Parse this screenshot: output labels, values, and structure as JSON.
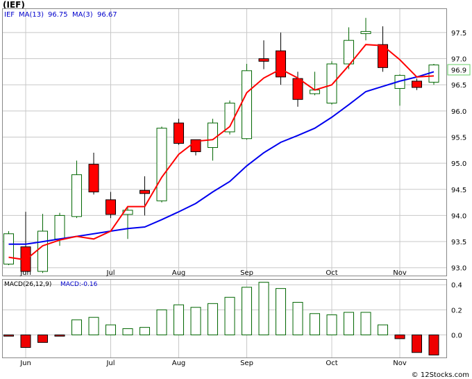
{
  "header": {
    "title": "(IEF)",
    "credit": "© 12Stocks.com"
  },
  "colors": {
    "up_outline": "#006600",
    "down_fill": "#ff0000",
    "ma_long": "#0000ee",
    "ma_short": "#ff0000",
    "macd_up": "#006600",
    "macd_down": "#ee0000",
    "grid": "#c8c8c8",
    "price_box": "#66cc66"
  },
  "legend": {
    "symbol": "IEF",
    "ma13_label": "MA(13)",
    "ma13_value": "96.75",
    "ma3_label": "MA(3)",
    "ma3_value": "96.67"
  },
  "price_tag": "96.9",
  "macd_legend": {
    "label": "MACD(26,12,9)",
    "value_label": "MACD:-0.16"
  },
  "chart_data": [
    {
      "type": "candlestick",
      "title": "",
      "x_tick_labels": [
        "Jun",
        "Jul",
        "Aug",
        "Sep",
        "Oct",
        "Nov"
      ],
      "x_tick_index": [
        1,
        6,
        10,
        14,
        19,
        23
      ],
      "y_ticks": [
        93.0,
        93.5,
        94.0,
        94.5,
        95.0,
        95.5,
        96.0,
        96.5,
        97.0,
        97.5
      ],
      "y_tick_labels": [
        "93.0",
        "93.5",
        "94.0",
        "94.5",
        "95.0",
        "95.5",
        "96.0",
        "96.5",
        "97.0",
        "97.5"
      ],
      "ylim": [
        92.85,
        97.95
      ],
      "grid": true,
      "candles": [
        {
          "open": 93.07,
          "high": 93.7,
          "low": 93.05,
          "close": 93.65
        },
        {
          "open": 93.4,
          "high": 94.07,
          "low": 92.88,
          "close": 92.93
        },
        {
          "open": 92.93,
          "high": 94.03,
          "low": 92.9,
          "close": 93.7
        },
        {
          "open": 93.55,
          "high": 94.05,
          "low": 93.42,
          "close": 94.0
        },
        {
          "open": 93.98,
          "high": 95.05,
          "low": 93.95,
          "close": 94.78
        },
        {
          "open": 94.98,
          "high": 95.2,
          "low": 94.4,
          "close": 94.45
        },
        {
          "open": 94.3,
          "high": 94.45,
          "low": 93.95,
          "close": 94.02
        },
        {
          "open": 94.02,
          "high": 94.15,
          "low": 93.55,
          "close": 94.1
        },
        {
          "open": 94.48,
          "high": 94.75,
          "low": 94.0,
          "close": 94.42
        },
        {
          "open": 94.28,
          "high": 95.7,
          "low": 94.25,
          "close": 95.67
        },
        {
          "open": 95.77,
          "high": 95.85,
          "low": 95.35,
          "close": 95.38
        },
        {
          "open": 95.45,
          "high": 95.45,
          "low": 95.15,
          "close": 95.22
        },
        {
          "open": 95.3,
          "high": 95.85,
          "low": 95.05,
          "close": 95.77
        },
        {
          "open": 95.6,
          "high": 96.2,
          "low": 95.55,
          "close": 96.15
        },
        {
          "open": 95.47,
          "high": 96.9,
          "low": 95.45,
          "close": 96.77
        },
        {
          "open": 97.0,
          "high": 97.35,
          "low": 96.8,
          "close": 96.95
        },
        {
          "open": 97.15,
          "high": 97.5,
          "low": 96.5,
          "close": 96.65
        },
        {
          "open": 96.62,
          "high": 96.75,
          "low": 96.08,
          "close": 96.22
        },
        {
          "open": 96.33,
          "high": 96.75,
          "low": 96.3,
          "close": 96.4
        },
        {
          "open": 96.15,
          "high": 96.95,
          "low": 96.12,
          "close": 96.9
        },
        {
          "open": 96.9,
          "high": 97.6,
          "low": 96.8,
          "close": 97.35
        },
        {
          "open": 97.48,
          "high": 97.78,
          "low": 97.35,
          "close": 97.52
        },
        {
          "open": 97.27,
          "high": 97.62,
          "low": 96.75,
          "close": 96.83
        },
        {
          "open": 96.43,
          "high": 96.7,
          "low": 96.1,
          "close": 96.68
        },
        {
          "open": 96.57,
          "high": 96.62,
          "low": 96.4,
          "close": 96.45
        },
        {
          "open": 96.55,
          "high": 96.9,
          "low": 96.5,
          "close": 96.88
        }
      ],
      "series": [
        {
          "name": "MA(13)",
          "color": "#0000ee",
          "values": [
            93.45,
            93.45,
            93.5,
            93.55,
            null,
            null,
            93.7,
            93.75,
            93.78,
            93.92,
            94.07,
            94.23,
            94.45,
            94.65,
            94.95,
            95.2,
            95.4,
            95.53,
            95.67,
            95.88,
            96.12,
            96.37,
            96.47,
            96.57,
            96.65,
            96.75
          ]
        },
        {
          "name": "MA(3)",
          "color": "#ff0000",
          "values": [
            93.2,
            93.15,
            93.42,
            93.53,
            93.6,
            93.55,
            93.7,
            94.17,
            94.17,
            94.73,
            95.17,
            95.42,
            95.45,
            95.7,
            96.35,
            96.63,
            96.8,
            96.63,
            96.4,
            96.5,
            96.87,
            97.27,
            97.25,
            96.98,
            96.65,
            96.67
          ]
        }
      ]
    },
    {
      "type": "bar",
      "title": "",
      "y_ticks": [
        0.0,
        0.2,
        0.4
      ],
      "y_tick_labels": [
        "0.0",
        "0.2",
        "0.4"
      ],
      "ylim": [
        -0.18,
        0.44
      ],
      "grid": true,
      "series": [
        {
          "name": "MACD(26,12,9)",
          "values": [
            -0.01,
            -0.1,
            -0.06,
            -0.01,
            0.12,
            0.14,
            0.08,
            0.05,
            0.06,
            0.2,
            0.24,
            0.22,
            0.25,
            0.3,
            0.38,
            0.42,
            0.37,
            0.26,
            0.17,
            0.16,
            0.18,
            0.18,
            0.08,
            -0.03,
            -0.14,
            -0.16
          ]
        }
      ]
    }
  ]
}
